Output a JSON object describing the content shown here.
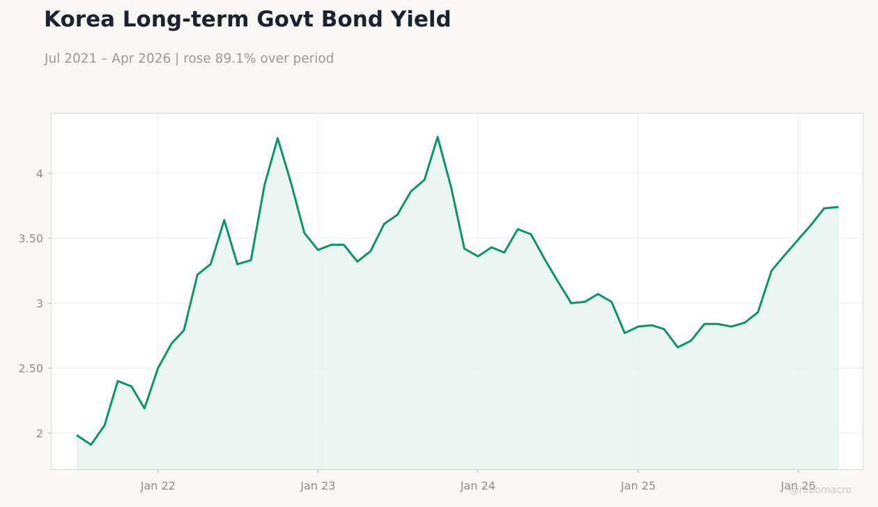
{
  "title": "Korea Long-term Govt Bond Yield",
  "subtitle": "Jul 2021 – Apr 2026 | rose 89.1% over period",
  "watermark": "@robomacro",
  "colors": {
    "line": "#0d9466",
    "fill": "#e6f3ee",
    "background": "#f9f8f5",
    "plot_background": "#ffffff",
    "grid": "#efeeeb"
  },
  "chart_data": {
    "type": "area",
    "title": "Korea Long-term Govt Bond Yield",
    "subtitle": "Jul 2021 – Apr 2026 | rose 89.1% over period",
    "xlabel": "",
    "ylabel": "",
    "grid": true,
    "x_range": [
      "2021-05-03",
      "2026-05-28"
    ],
    "ylim": [
      1.72,
      4.46
    ],
    "yticks": [
      2,
      2.5,
      3,
      3.5,
      4
    ],
    "ytick_labels": [
      "2",
      "2.50",
      "3",
      "3.50",
      "4"
    ],
    "xticks": [
      "2022-01-01",
      "2023-01-01",
      "2024-01-01",
      "2025-01-01",
      "2026-01-01"
    ],
    "xtick_labels": [
      "Jan 22",
      "Jan 23",
      "Jan 24",
      "Jan 25",
      "Jan 26"
    ],
    "series": [
      {
        "points": [
          [
            "2021-07-01",
            1.98
          ],
          [
            "2021-08-01",
            1.91
          ],
          [
            "2021-09-01",
            2.06
          ],
          [
            "2021-10-01",
            2.4
          ],
          [
            "2021-11-01",
            2.36
          ],
          [
            "2021-12-01",
            2.19
          ],
          [
            "2022-01-01",
            2.5
          ],
          [
            "2022-02-01",
            2.69
          ],
          [
            "2022-03-01",
            2.79
          ],
          [
            "2022-04-01",
            3.22
          ],
          [
            "2022-05-01",
            3.3
          ],
          [
            "2022-06-01",
            3.64
          ],
          [
            "2022-07-01",
            3.3
          ],
          [
            "2022-08-01",
            3.33
          ],
          [
            "2022-09-01",
            3.91
          ],
          [
            "2022-10-01",
            4.27
          ],
          [
            "2022-11-01",
            3.92
          ],
          [
            "2022-12-01",
            3.54
          ],
          [
            "2023-01-01",
            3.41
          ],
          [
            "2023-02-01",
            3.45
          ],
          [
            "2023-03-01",
            3.45
          ],
          [
            "2023-04-01",
            3.32
          ],
          [
            "2023-05-01",
            3.4
          ],
          [
            "2023-06-01",
            3.61
          ],
          [
            "2023-07-01",
            3.68
          ],
          [
            "2023-08-01",
            3.86
          ],
          [
            "2023-09-01",
            3.95
          ],
          [
            "2023-10-01",
            4.28
          ],
          [
            "2023-11-01",
            3.89
          ],
          [
            "2023-12-01",
            3.42
          ],
          [
            "2024-01-01",
            3.36
          ],
          [
            "2024-02-01",
            3.43
          ],
          [
            "2024-03-01",
            3.39
          ],
          [
            "2024-04-01",
            3.57
          ],
          [
            "2024-05-01",
            3.53
          ],
          [
            "2024-06-01",
            3.34
          ],
          [
            "2024-07-01",
            3.17
          ],
          [
            "2024-08-01",
            3.0
          ],
          [
            "2024-09-01",
            3.01
          ],
          [
            "2024-10-01",
            3.07
          ],
          [
            "2024-11-01",
            3.01
          ],
          [
            "2024-12-01",
            2.77
          ],
          [
            "2025-01-01",
            2.82
          ],
          [
            "2025-02-01",
            2.83
          ],
          [
            "2025-03-01",
            2.8
          ],
          [
            "2025-04-01",
            2.66
          ],
          [
            "2025-05-01",
            2.71
          ],
          [
            "2025-06-01",
            2.84
          ],
          [
            "2025-07-01",
            2.84
          ],
          [
            "2025-08-01",
            2.82
          ],
          [
            "2025-09-01",
            2.85
          ],
          [
            "2025-10-01",
            2.93
          ],
          [
            "2025-11-01",
            3.25
          ],
          [
            "2025-12-01",
            3.37
          ],
          [
            "2026-01-01",
            3.49
          ],
          [
            "2026-02-01",
            3.61
          ],
          [
            "2026-03-01",
            3.73
          ],
          [
            "2026-04-01",
            3.74
          ]
        ]
      }
    ]
  }
}
